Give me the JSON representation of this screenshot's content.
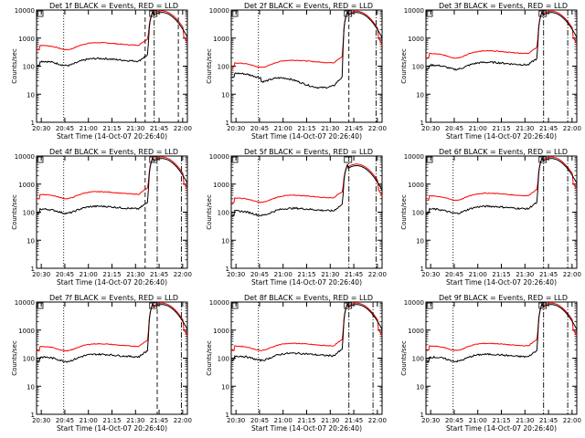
{
  "page": {
    "background": "#ffffff"
  },
  "colors": {
    "events": "#000000",
    "lld": "#ff0000",
    "axis": "#000000"
  },
  "chart_data": [
    {
      "type": "line",
      "title": "Det 1f BLACK = Events, RED = LLD",
      "xlabel": "Start Time (14-Oct-07 20:26:40)",
      "ylabel": "Counts/sec",
      "xticks": [
        "20:30",
        "20:45",
        "21:00",
        "21:15",
        "21:30",
        "21:45",
        "22:00"
      ],
      "yticks": [
        "1",
        "10",
        "100",
        "1000",
        "10000"
      ],
      "xlim": [
        0,
        100
      ],
      "ylim": [
        1,
        10000
      ],
      "yscale": "log",
      "shape": "A",
      "lld_base": 550,
      "ev_base": 150,
      "markers": {
        "dotted": [
          18
        ],
        "dashed": [
          72,
          94
        ],
        "dashdot": [
          78
        ]
      },
      "series": [
        {
          "name": "Events",
          "color": "#000000"
        },
        {
          "name": "LLD",
          "color": "#ff0000"
        }
      ]
    },
    {
      "type": "line",
      "title": "Det 2f BLACK = Events, RED = LLD",
      "xlabel": "Start Time (14-Oct-07 20:26:40)",
      "ylabel": "Counts/sec",
      "xticks": [
        "20:30",
        "20:45",
        "21:00",
        "21:15",
        "21:30",
        "21:45",
        "22:00"
      ],
      "yticks": [
        "1",
        "10",
        "100",
        "1000",
        "10000"
      ],
      "xlim": [
        0,
        100
      ],
      "ylim": [
        1,
        10000
      ],
      "yscale": "log",
      "shape": "B",
      "lld_base": 130,
      "ev_base": 40,
      "markers": {
        "dotted": [
          18
        ],
        "dashed": [
          78
        ],
        "dashdot": [
          96
        ]
      },
      "series": [
        {
          "name": "Events",
          "color": "#000000"
        },
        {
          "name": "LLD",
          "color": "#ff0000"
        }
      ]
    },
    {
      "type": "line",
      "title": "Det 3f BLACK = Events, RED = LLD",
      "xlabel": "Start Time (14-Oct-07 20:26:40)",
      "ylabel": "Counts/sec",
      "xticks": [
        "20:30",
        "20:45",
        "21:00",
        "21:15",
        "21:30",
        "21:45",
        "22:00"
      ],
      "yticks": [
        "1",
        "10",
        "100",
        "1000",
        "10000"
      ],
      "xlim": [
        0,
        100
      ],
      "ylim": [
        1,
        10000
      ],
      "yscale": "log",
      "shape": "C",
      "lld_base": 280,
      "ev_base": 110,
      "markers": {
        "dotted": [],
        "dashed": [],
        "dashdot": [
          78,
          94
        ]
      },
      "series": [
        {
          "name": "Events",
          "color": "#000000"
        },
        {
          "name": "LLD",
          "color": "#ff0000"
        }
      ]
    },
    {
      "type": "line",
      "title": "Det 4f BLACK = Events, RED = LLD",
      "xlabel": "Start Time (14-Oct-07 20:26:40)",
      "ylabel": "Counts/sec",
      "xticks": [
        "20:30",
        "20:45",
        "21:00",
        "21:15",
        "21:30",
        "21:45",
        "22:00"
      ],
      "yticks": [
        "1",
        "10",
        "100",
        "1000",
        "10000"
      ],
      "xlim": [
        0,
        100
      ],
      "ylim": [
        1,
        10000
      ],
      "yscale": "log",
      "shape": "A",
      "lld_base": 430,
      "ev_base": 130,
      "markers": {
        "dotted": [
          18
        ],
        "dashed": [
          72
        ],
        "dashdot": [
          80,
          96
        ]
      },
      "series": [
        {
          "name": "Events",
          "color": "#000000"
        },
        {
          "name": "LLD",
          "color": "#ff0000"
        }
      ]
    },
    {
      "type": "line",
      "title": "Det 5f BLACK = Events, RED = LLD",
      "xlabel": "Start Time (14-Oct-07 20:26:40)",
      "ylabel": "Counts/sec",
      "xticks": [
        "20:30",
        "20:45",
        "21:00",
        "21:15",
        "21:30",
        "21:45",
        "22:00"
      ],
      "yticks": [
        "1",
        "10",
        "100",
        "1000",
        "10000"
      ],
      "xlim": [
        0,
        100
      ],
      "ylim": [
        1,
        10000
      ],
      "yscale": "log",
      "shape": "E",
      "lld_base": 320,
      "ev_base": 110,
      "markers": {
        "dotted": [
          18
        ],
        "dashed": [],
        "dashdot": [
          78,
          96
        ]
      },
      "series": [
        {
          "name": "Events",
          "color": "#000000"
        },
        {
          "name": "LLD",
          "color": "#ff0000"
        }
      ]
    },
    {
      "type": "line",
      "title": "Det 6f BLACK = Events, RED = LLD",
      "xlabel": "Start Time (14-Oct-07 20:26:40)",
      "ylabel": "Counts/sec",
      "xticks": [
        "20:30",
        "20:45",
        "21:00",
        "21:15",
        "21:30",
        "21:45",
        "22:00"
      ],
      "yticks": [
        "1",
        "10",
        "100",
        "1000",
        "10000"
      ],
      "xlim": [
        0,
        100
      ],
      "ylim": [
        1,
        10000
      ],
      "yscale": "log",
      "shape": "A",
      "lld_base": 380,
      "ev_base": 130,
      "markers": {
        "dotted": [
          18
        ],
        "dashed": [],
        "dashdot": [
          78,
          94
        ]
      },
      "series": [
        {
          "name": "Events",
          "color": "#000000"
        },
        {
          "name": "LLD",
          "color": "#ff0000"
        }
      ]
    },
    {
      "type": "line",
      "title": "Det 7f BLACK = Events, RED = LLD",
      "xlabel": "Start Time (14-Oct-07 20:26:40)",
      "ylabel": "Counts/sec",
      "xticks": [
        "20:30",
        "20:45",
        "21:00",
        "21:15",
        "21:30",
        "21:45",
        "22:00"
      ],
      "yticks": [
        "1",
        "10",
        "100",
        "1000",
        "10000"
      ],
      "xlim": [
        0,
        100
      ],
      "ylim": [
        1,
        10000
      ],
      "yscale": "log",
      "shape": "A",
      "lld_base": 260,
      "ev_base": 110,
      "markers": {
        "dotted": [
          18
        ],
        "dashed": [
          80
        ],
        "dashdot": [
          96
        ]
      },
      "series": [
        {
          "name": "Events",
          "color": "#000000"
        },
        {
          "name": "LLD",
          "color": "#ff0000"
        }
      ]
    },
    {
      "type": "line",
      "title": "Det 8f BLACK = Events, RED = LLD",
      "xlabel": "Start Time (14-Oct-07 20:26:40)",
      "ylabel": "Counts/sec",
      "xticks": [
        "20:30",
        "20:45",
        "21:00",
        "21:15",
        "21:30",
        "21:45",
        "22:00"
      ],
      "yticks": [
        "1",
        "10",
        "100",
        "1000",
        "10000"
      ],
      "xlim": [
        0,
        100
      ],
      "ylim": [
        1,
        10000
      ],
      "yscale": "log",
      "shape": "H",
      "lld_base": 270,
      "ev_base": 120,
      "markers": {
        "dotted": [
          18
        ],
        "dashed": [],
        "dashdot": [
          78,
          94
        ]
      },
      "series": [
        {
          "name": "Events",
          "color": "#000000"
        },
        {
          "name": "LLD",
          "color": "#ff0000"
        }
      ]
    },
    {
      "type": "line",
      "title": "Det 9f BLACK = Events, RED = LLD",
      "xlabel": "Start Time (14-Oct-07 20:26:40)",
      "ylabel": "Counts/sec",
      "xticks": [
        "20:30",
        "20:45",
        "21:00",
        "21:15",
        "21:30",
        "21:45",
        "22:00"
      ],
      "yticks": [
        "1",
        "10",
        "100",
        "1000",
        "10000"
      ],
      "xlim": [
        0,
        100
      ],
      "ylim": [
        1,
        10000
      ],
      "yscale": "log",
      "shape": "A",
      "lld_base": 270,
      "ev_base": 110,
      "markers": {
        "dotted": [
          18
        ],
        "dashed": [],
        "dashdot": [
          78,
          94
        ]
      },
      "series": [
        {
          "name": "Events",
          "color": "#000000"
        },
        {
          "name": "LLD",
          "color": "#ff0000"
        }
      ]
    }
  ]
}
